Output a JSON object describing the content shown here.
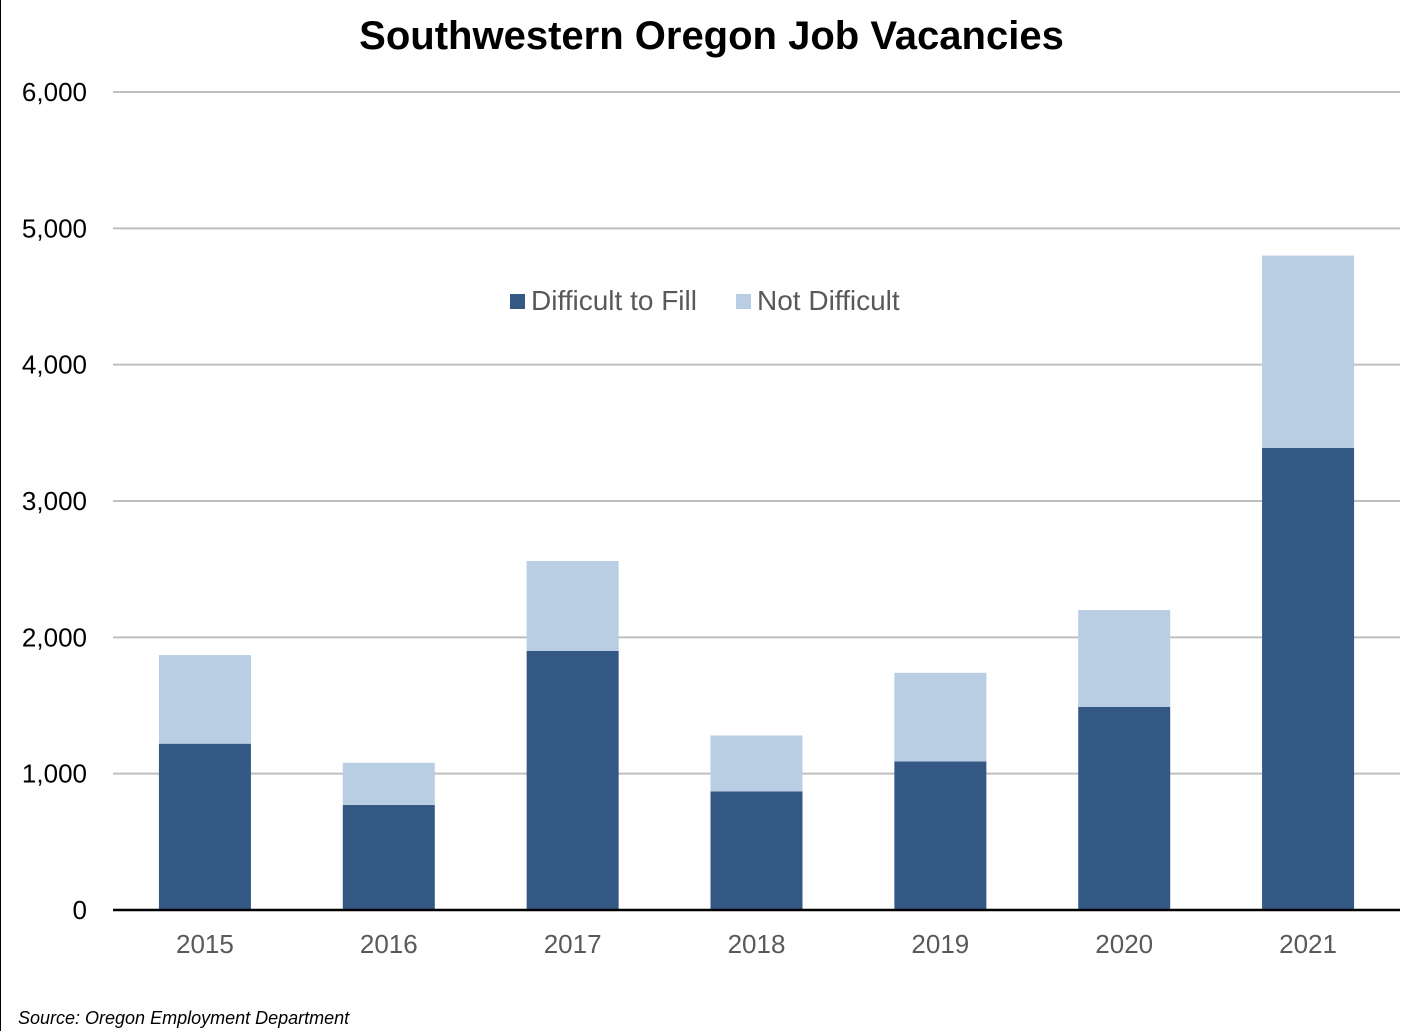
{
  "chart_data": {
    "type": "bar",
    "stacked": true,
    "title": "Southwestern Oregon Job Vacancies",
    "xlabel": "",
    "ylabel": "",
    "categories": [
      "2015",
      "2016",
      "2017",
      "2018",
      "2019",
      "2020",
      "2021"
    ],
    "series": [
      {
        "name": "Difficult to Fill",
        "color": "#345884",
        "values": [
          1220,
          770,
          1900,
          870,
          1090,
          1490,
          3390
        ]
      },
      {
        "name": "Not Difficult",
        "color": "#b9cde3",
        "values": [
          650,
          310,
          660,
          410,
          650,
          710,
          1410
        ]
      }
    ],
    "ylim": [
      0,
      6000
    ],
    "yticks": [
      0,
      1000,
      2000,
      3000,
      4000,
      5000,
      6000
    ],
    "ytick_labels": [
      "0",
      "1,000",
      "2,000",
      "3,000",
      "4,000",
      "5,000",
      "6,000"
    ],
    "grid": true,
    "legend_position": "top-center",
    "gridline_color": "#bfbfbf",
    "axis_line_color": "#000000",
    "tick_label_color": "#595959"
  },
  "source": "Source: Oregon Employment Department"
}
